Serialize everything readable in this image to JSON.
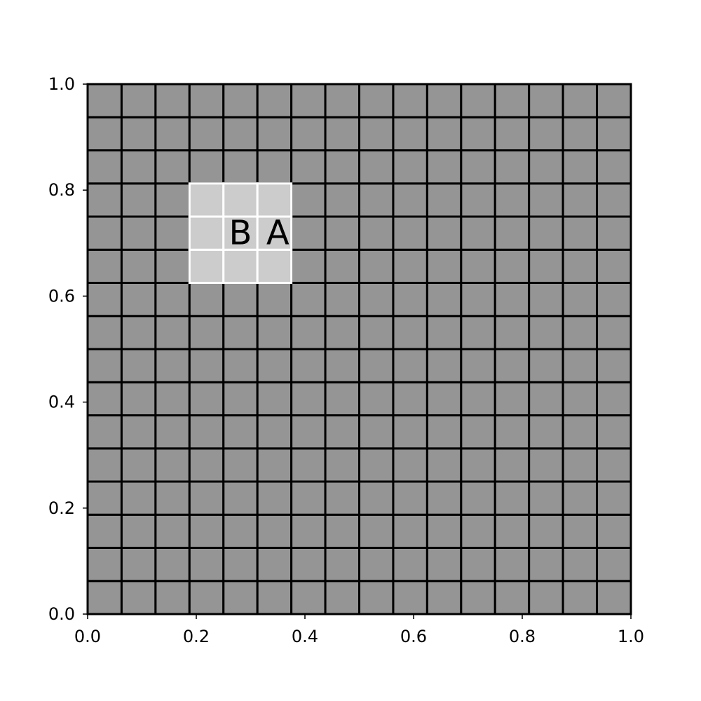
{
  "chart_data": {
    "type": "heatmap",
    "title": "",
    "xlabel": "",
    "ylabel": "",
    "xlim": [
      0,
      1
    ],
    "ylim": [
      0,
      1
    ],
    "grid": {
      "rows": 16,
      "cols": 16
    },
    "colors": {
      "cell": "#959595",
      "highlight": "#cccccc",
      "edge": "#000000",
      "highlight_edge": "#ffffff"
    },
    "highlight_region": {
      "x": [
        0.1875,
        0.375
      ],
      "y": [
        0.625,
        0.8125
      ]
    },
    "x_ticks": [
      {
        "value": 0.0,
        "label": "0.0"
      },
      {
        "value": 0.2,
        "label": "0.2"
      },
      {
        "value": 0.4,
        "label": "0.4"
      },
      {
        "value": 0.6,
        "label": "0.6"
      },
      {
        "value": 0.8,
        "label": "0.8"
      },
      {
        "value": 1.0,
        "label": "1.0"
      }
    ],
    "y_ticks": [
      {
        "value": 0.0,
        "label": "0.0"
      },
      {
        "value": 0.2,
        "label": "0.2"
      },
      {
        "value": 0.4,
        "label": "0.4"
      },
      {
        "value": 0.6,
        "label": "0.6"
      },
      {
        "value": 0.8,
        "label": "0.8"
      },
      {
        "value": 1.0,
        "label": "1.0"
      }
    ],
    "annotations": [
      {
        "text": "B",
        "x": 0.28125,
        "y": 0.71875
      },
      {
        "text": "A",
        "x": 0.35,
        "y": 0.71875
      }
    ]
  }
}
